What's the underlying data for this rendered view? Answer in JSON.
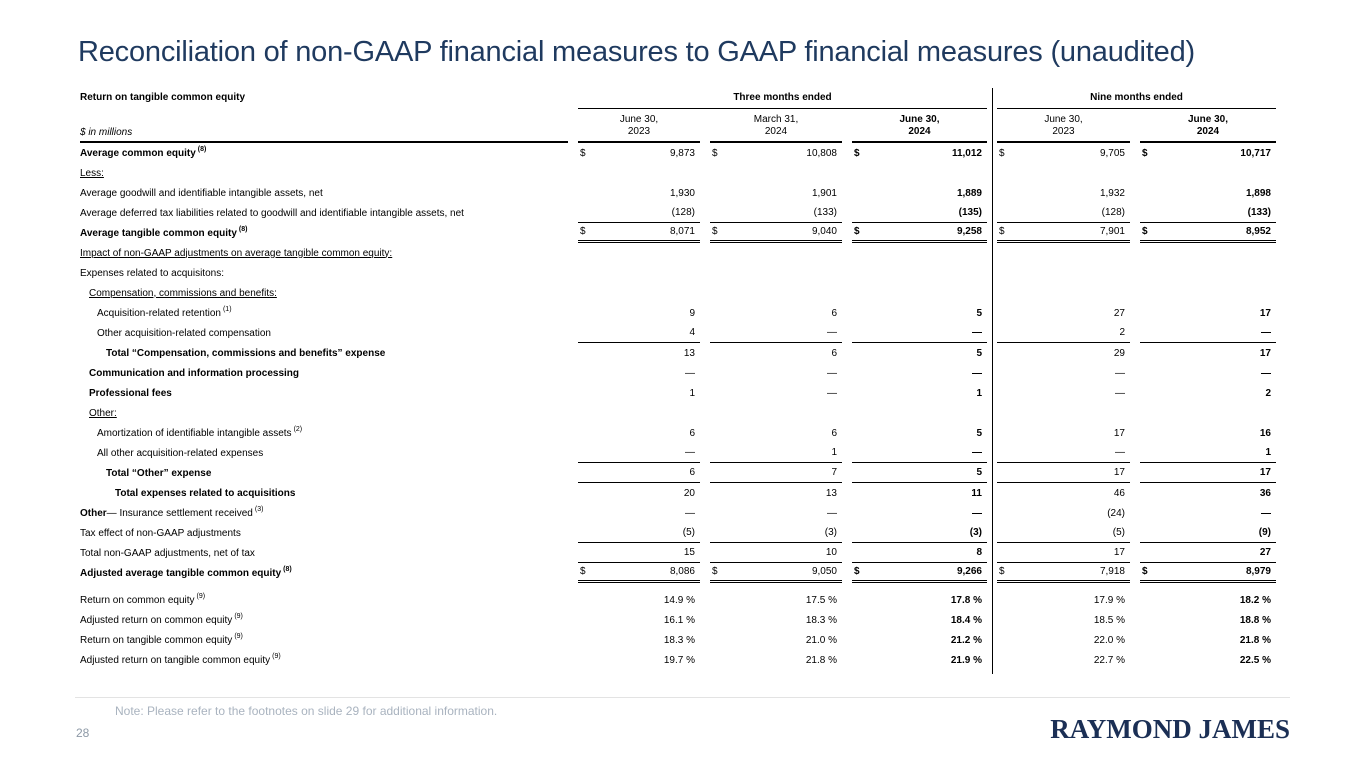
{
  "slide": {
    "title": "Reconciliation of non-GAAP financial measures to GAAP financial measures (unaudited)",
    "note": "Note: Please refer to the footnotes on slide 29 for additional information.",
    "page_number": "28",
    "logo_text": "RAYMOND JAMES"
  },
  "colors": {
    "title_navy": "#1f3a5f",
    "logo_navy": "#1b2f55",
    "note_gray": "#a9b3bf",
    "page_number_gray": "#8d99a6",
    "table_text": "#000000"
  },
  "table": {
    "corner_title": "Return on tangible common equity",
    "unit_label": "$ in millions",
    "group_headers": [
      "Three months ended",
      "Nine months ended"
    ],
    "columns": [
      {
        "label": "June 30,\n2023",
        "bold": false
      },
      {
        "label": "March 31,\n2024",
        "bold": false
      },
      {
        "label": "June 30,\n2024",
        "bold": true
      },
      {
        "label": "June 30,\n2023",
        "bold": false
      },
      {
        "label": "June 30,\n2024",
        "bold": true
      }
    ],
    "rows": [
      {
        "label": "Average common equity",
        "sup": "(8)",
        "style": "bold",
        "indent": 0,
        "dollar": true,
        "values": [
          "9,873",
          "10,808",
          "11,012",
          "9,705",
          "10,717"
        ]
      },
      {
        "label": "Less:",
        "style": "underline",
        "indent": 0
      },
      {
        "label": "Average goodwill and identifiable intangible assets, net",
        "indent": 0,
        "values": [
          "1,930",
          "1,901",
          "1,889",
          "1,932",
          "1,898"
        ]
      },
      {
        "label": "Average deferred tax liabilities related to goodwill and identifiable intangible assets, net",
        "indent": 0,
        "values": [
          "(128)",
          "(133)",
          "(135)",
          "(128)",
          "(133)"
        ],
        "rule": "single"
      },
      {
        "label": "Average tangible common equity",
        "sup": "(8)",
        "style": "bold",
        "indent": 0,
        "dollar": true,
        "values": [
          "8,071",
          "9,040",
          "9,258",
          "7,901",
          "8,952"
        ],
        "rule": "double"
      },
      {
        "label": "Impact of non-GAAP adjustments on average tangible common equity:",
        "style": "underline",
        "indent": 0
      },
      {
        "label": "Expenses related to acquisitons:",
        "indent": 0
      },
      {
        "label": "Compensation, commissions and benefits:",
        "style": "underline",
        "indent": 1
      },
      {
        "label": "Acquisition-related retention",
        "sup": "(1)",
        "indent": 2,
        "values": [
          "9",
          "6",
          "5",
          "27",
          "17"
        ]
      },
      {
        "label": "Other acquisition-related compensation",
        "indent": 2,
        "values": [
          "4",
          "—",
          "—",
          "2",
          "—"
        ],
        "rule": "single"
      },
      {
        "label": "Total “Compensation, commissions and benefits” expense",
        "style": "bold",
        "indent": 3,
        "values": [
          "13",
          "6",
          "5",
          "29",
          "17"
        ]
      },
      {
        "label": "Communication and information processing",
        "style": "bold",
        "indent": 1,
        "values": [
          "—",
          "—",
          "—",
          "—",
          "—"
        ]
      },
      {
        "label": "Professional fees",
        "style": "bold",
        "indent": 1,
        "values": [
          "1",
          "—",
          "1",
          "—",
          "2"
        ]
      },
      {
        "label": "Other:",
        "style": "underline",
        "indent": 1
      },
      {
        "label": "Amortization of identifiable intangible assets",
        "sup": "(2)",
        "indent": 2,
        "values": [
          "6",
          "6",
          "5",
          "17",
          "16"
        ]
      },
      {
        "label": "All other acquisition-related expenses",
        "indent": 2,
        "values": [
          "—",
          "1",
          "—",
          "—",
          "1"
        ],
        "rule": "single"
      },
      {
        "label": "Total “Other” expense",
        "style": "bold",
        "indent": 3,
        "values": [
          "6",
          "7",
          "5",
          "17",
          "17"
        ],
        "rule": "single"
      },
      {
        "label": "Total expenses related to acquisitions",
        "style": "bold",
        "indent": 4,
        "values": [
          "20",
          "13",
          "11",
          "46",
          "36"
        ]
      },
      {
        "bold_prefix": "Other",
        "label": " — Insurance settlement received",
        "sup": "(3)",
        "indent": 0,
        "values": [
          "—",
          "—",
          "—",
          "(24)",
          "—"
        ]
      },
      {
        "label": "Tax effect of non-GAAP adjustments",
        "indent": 0,
        "values": [
          "(5)",
          "(3)",
          "(3)",
          "(5)",
          "(9)"
        ],
        "rule": "single"
      },
      {
        "label": "Total non-GAAP adjustments, net of tax",
        "indent": 0,
        "values": [
          "15",
          "10",
          "8",
          "17",
          "27"
        ],
        "rule": "single"
      },
      {
        "label": "Adjusted average tangible common equity",
        "sup": "(8)",
        "style": "bold",
        "indent": 0,
        "dollar": true,
        "values": [
          "8,086",
          "9,050",
          "9,266",
          "7,918",
          "8,979"
        ],
        "rule": "double"
      },
      {
        "label": "Return on common equity",
        "sup": "(9)",
        "indent": 0,
        "spacer": true,
        "values": [
          "14.9 %",
          "17.5 %",
          "17.8 %",
          "17.9 %",
          "18.2 %"
        ]
      },
      {
        "label": "Adjusted return on common equity",
        "sup": "(9)",
        "indent": 0,
        "values": [
          "16.1 %",
          "18.3 %",
          "18.4 %",
          "18.5 %",
          "18.8 %"
        ]
      },
      {
        "label": "Return on tangible common equity",
        "sup": "(9)",
        "indent": 0,
        "values": [
          "18.3 %",
          "21.0 %",
          "21.2 %",
          "22.0 %",
          "21.8 %"
        ]
      },
      {
        "label": "Adjusted return on tangible common equity",
        "sup": "(9)",
        "indent": 0,
        "values": [
          "19.7 %",
          "21.8 %",
          "21.9 %",
          "22.7 %",
          "22.5 %"
        ]
      }
    ]
  }
}
